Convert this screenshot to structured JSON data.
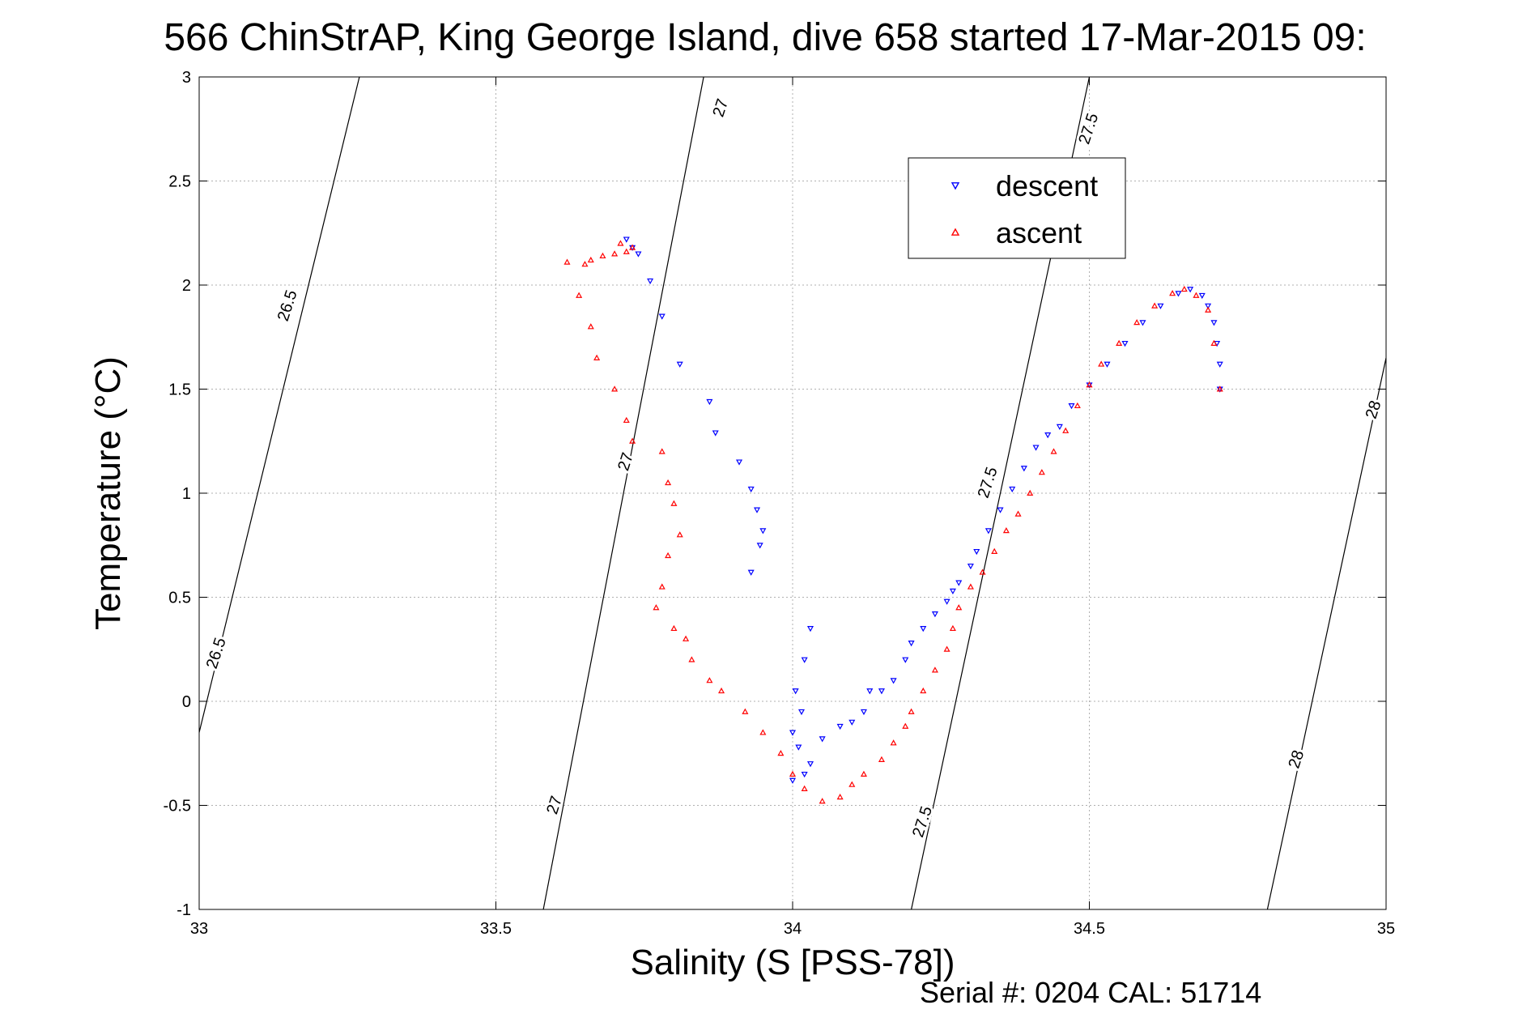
{
  "chart_data": {
    "type": "scatter",
    "title": "566 ChinStrAP, King George Island, dive 658 started 17-Mar-2015 09:",
    "xlabel": "Salinity (S [PSS-78])",
    "ylabel": "Temperature (°C)",
    "xlim": [
      33,
      35
    ],
    "ylim": [
      -1,
      3
    ],
    "xticks": [
      33,
      33.5,
      34,
      34.5,
      35
    ],
    "xtick_labels": [
      "33",
      "33.5",
      "34",
      "34.5",
      "35"
    ],
    "yticks": [
      -1,
      -0.5,
      0,
      0.5,
      1,
      1.5,
      2,
      2.5,
      3
    ],
    "ytick_labels": [
      "-1",
      "-0.5",
      "0",
      "0.5",
      "1",
      "1.5",
      "2",
      "2.5",
      "3"
    ],
    "grid": true,
    "legend": {
      "position": "upper-right",
      "entries": [
        "descent",
        "ascent"
      ]
    },
    "footer": "Serial #: 0204  CAL: 51714",
    "colors": {
      "descent": "#0000ff",
      "ascent": "#ff0000",
      "contour": "#000000",
      "grid": "#b0b0b0"
    },
    "contours": [
      {
        "label": "26.5",
        "points": [
          [
            33.0,
            -0.15
          ],
          [
            33.27,
            3.0
          ]
        ]
      },
      {
        "label": "27",
        "points": [
          [
            33.58,
            -1.0
          ],
          [
            33.85,
            3.0
          ]
        ]
      },
      {
        "label": "27.5",
        "points": [
          [
            34.2,
            -1.0
          ],
          [
            34.5,
            3.0
          ]
        ]
      },
      {
        "label": "28",
        "points": [
          [
            34.8,
            -1.0
          ],
          [
            35.0,
            1.65
          ]
        ]
      }
    ],
    "contour_labels": [
      {
        "text": "26.5",
        "x": 33.15,
        "y": 1.9
      },
      {
        "text": "26.5",
        "x": 33.03,
        "y": 0.23
      },
      {
        "text": "27",
        "x": 33.88,
        "y": 2.85
      },
      {
        "text": "27",
        "x": 33.72,
        "y": 1.15
      },
      {
        "text": "27",
        "x": 33.6,
        "y": -0.5
      },
      {
        "text": "27.5",
        "x": 34.5,
        "y": 2.75
      },
      {
        "text": "27.5",
        "x": 34.33,
        "y": 1.05
      },
      {
        "text": "27.5",
        "x": 34.22,
        "y": -0.58
      },
      {
        "text": "28",
        "x": 34.98,
        "y": 1.4
      },
      {
        "text": "28",
        "x": 34.85,
        "y": -0.28
      }
    ],
    "series": [
      {
        "name": "descent",
        "marker": "triangle-down",
        "x": [
          33.72,
          33.73,
          33.74,
          33.76,
          33.78,
          33.81,
          33.86,
          33.87,
          33.91,
          33.93,
          33.94,
          33.95,
          33.945,
          33.93,
          34.0,
          34.02,
          34.03,
          34.01,
          34.0,
          34.015,
          34.005,
          34.02,
          34.03,
          34.05,
          34.08,
          34.1,
          34.12,
          34.13,
          34.15,
          34.17,
          34.19,
          34.2,
          34.22,
          34.24,
          34.26,
          34.27,
          34.28,
          34.3,
          34.31,
          34.33,
          34.35,
          34.37,
          34.39,
          34.41,
          34.43,
          34.45,
          34.47,
          34.5,
          34.53,
          34.56,
          34.59,
          34.62,
          34.65,
          34.67,
          34.69,
          34.7,
          34.71,
          34.715,
          34.72,
          34.72
        ],
        "y": [
          2.22,
          2.18,
          2.15,
          2.02,
          1.85,
          1.62,
          1.44,
          1.29,
          1.15,
          1.02,
          0.92,
          0.82,
          0.75,
          0.62,
          -0.38,
          -0.35,
          -0.3,
          -0.22,
          -0.15,
          -0.05,
          0.05,
          0.2,
          0.35,
          -0.18,
          -0.12,
          -0.1,
          -0.05,
          0.05,
          0.05,
          0.1,
          0.2,
          0.28,
          0.35,
          0.42,
          0.48,
          0.53,
          0.57,
          0.65,
          0.72,
          0.82,
          0.92,
          1.02,
          1.12,
          1.22,
          1.28,
          1.32,
          1.42,
          1.52,
          1.62,
          1.72,
          1.82,
          1.9,
          1.96,
          1.98,
          1.95,
          1.9,
          1.82,
          1.72,
          1.62,
          1.5
        ]
      },
      {
        "name": "ascent",
        "marker": "triangle-up",
        "x": [
          33.71,
          33.72,
          33.73,
          33.7,
          33.68,
          33.66,
          33.65,
          33.62,
          33.64,
          33.66,
          33.67,
          33.7,
          33.72,
          33.73,
          33.78,
          33.79,
          33.8,
          33.81,
          33.79,
          33.78,
          33.77,
          33.8,
          33.82,
          33.83,
          33.86,
          33.88,
          33.92,
          33.95,
          33.98,
          34.0,
          34.02,
          34.05,
          34.08,
          34.1,
          34.12,
          34.15,
          34.17,
          34.19,
          34.2,
          34.22,
          34.24,
          34.26,
          34.27,
          34.28,
          34.3,
          34.32,
          34.34,
          34.36,
          34.38,
          34.4,
          34.42,
          34.44,
          34.46,
          34.48,
          34.5,
          34.52,
          34.55,
          34.58,
          34.61,
          34.64,
          34.66,
          34.68,
          34.7,
          34.71,
          34.72
        ],
        "y": [
          2.2,
          2.16,
          2.18,
          2.15,
          2.14,
          2.12,
          2.1,
          2.11,
          1.95,
          1.8,
          1.65,
          1.5,
          1.35,
          1.25,
          1.2,
          1.05,
          0.95,
          0.8,
          0.7,
          0.55,
          0.45,
          0.35,
          0.3,
          0.2,
          0.1,
          0.05,
          -0.05,
          -0.15,
          -0.25,
          -0.35,
          -0.42,
          -0.48,
          -0.46,
          -0.4,
          -0.35,
          -0.28,
          -0.2,
          -0.12,
          -0.05,
          0.05,
          0.15,
          0.25,
          0.35,
          0.45,
          0.55,
          0.62,
          0.72,
          0.82,
          0.9,
          1.0,
          1.1,
          1.2,
          1.3,
          1.42,
          1.52,
          1.62,
          1.72,
          1.82,
          1.9,
          1.96,
          1.98,
          1.95,
          1.88,
          1.72,
          1.5
        ]
      }
    ]
  }
}
